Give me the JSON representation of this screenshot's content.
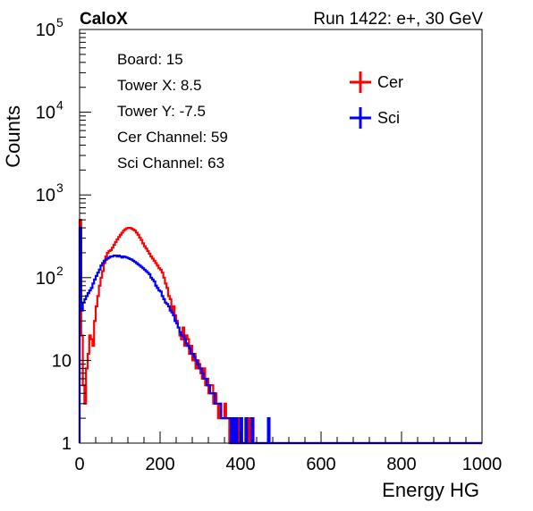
{
  "chart_data": {
    "type": "line",
    "header_left": "CaloX",
    "header_right": "Run 1422: e+, 30 GeV",
    "xlabel": "Energy HG",
    "ylabel": "Counts",
    "xlim": [
      0,
      1000
    ],
    "ylim": [
      1,
      100000
    ],
    "log_y": true,
    "x_ticks": [
      0,
      200,
      400,
      600,
      800,
      1000
    ],
    "y_ticks": [
      {
        "value": 1,
        "base": "1",
        "exp": ""
      },
      {
        "value": 10,
        "base": "10",
        "exp": ""
      },
      {
        "value": 100,
        "base": "10",
        "exp": "2"
      },
      {
        "value": 1000,
        "base": "10",
        "exp": "3"
      },
      {
        "value": 10000,
        "base": "10",
        "exp": "4"
      },
      {
        "value": 100000,
        "base": "10",
        "exp": "5"
      }
    ],
    "info_lines": [
      "Board: 15",
      "Tower X: 8.5",
      "Tower Y: -7.5",
      "Cer Channel: 59",
      "Sci Channel: 63"
    ],
    "legend_position": "top-right",
    "series": [
      {
        "name": "Cer",
        "color": "#ff0000",
        "x": [
          0,
          4,
          8,
          12,
          16,
          20,
          24,
          28,
          32,
          36,
          40,
          44,
          48,
          52,
          56,
          60,
          64,
          68,
          72,
          76,
          80,
          84,
          88,
          92,
          96,
          100,
          104,
          108,
          112,
          116,
          120,
          124,
          128,
          132,
          136,
          140,
          144,
          148,
          152,
          156,
          160,
          164,
          168,
          172,
          176,
          180,
          184,
          188,
          192,
          196,
          200,
          204,
          208,
          212,
          216,
          220,
          224,
          228,
          232,
          236,
          240,
          244,
          248,
          252,
          256,
          260,
          264,
          268,
          272,
          276,
          280,
          284,
          288,
          292,
          296,
          300,
          304,
          308,
          312,
          316,
          320,
          324,
          328,
          332,
          336,
          340,
          344,
          348,
          352,
          356,
          360,
          364,
          368,
          372,
          376,
          380,
          384,
          388,
          392,
          396,
          400,
          404,
          408,
          412,
          416,
          420,
          424,
          428,
          432,
          436,
          440,
          444,
          448,
          452,
          456,
          460,
          464,
          468,
          472,
          476,
          480,
          484,
          488,
          492,
          496,
          500,
          504,
          508,
          512,
          516,
          520,
          524,
          528,
          532,
          536,
          540,
          544,
          548,
          552,
          556,
          560,
          564,
          568,
          572,
          576,
          580,
          584,
          588,
          592,
          596,
          600
        ],
        "y": [
          500,
          20,
          5,
          3,
          8,
          12,
          20,
          18,
          15,
          30,
          45,
          60,
          80,
          100,
          120,
          150,
          180,
          200,
          210,
          215,
          230,
          250,
          270,
          290,
          310,
          330,
          350,
          370,
          385,
          395,
          400,
          398,
          392,
          380,
          370,
          350,
          330,
          305,
          285,
          260,
          240,
          225,
          210,
          195,
          180,
          170,
          160,
          150,
          140,
          130,
          125,
          115,
          100,
          85,
          75,
          60,
          55,
          40,
          45,
          35,
          30,
          25,
          20,
          18,
          25,
          15,
          20,
          18,
          12,
          15,
          10,
          12,
          8,
          10,
          9,
          7,
          6,
          8,
          5,
          6,
          4,
          5,
          5,
          3,
          4,
          3,
          2,
          3,
          2,
          2,
          3,
          2,
          2,
          1,
          2,
          1,
          2,
          1,
          1,
          2,
          1,
          1,
          1,
          1,
          1,
          2,
          1,
          1,
          1,
          1,
          1,
          1,
          1,
          1,
          1,
          1,
          1,
          1,
          1,
          1,
          1,
          1,
          1,
          1,
          1,
          1,
          1,
          1,
          1,
          1,
          1,
          1,
          1,
          1,
          1,
          1,
          1,
          1,
          1,
          1,
          1,
          1,
          1,
          1,
          1,
          1,
          1,
          1,
          1,
          1,
          1
        ]
      },
      {
        "name": "Sci",
        "color": "#0000ff",
        "x": [
          0,
          4,
          8,
          12,
          16,
          20,
          24,
          28,
          32,
          36,
          40,
          44,
          48,
          52,
          56,
          60,
          64,
          68,
          72,
          76,
          80,
          84,
          88,
          92,
          96,
          100,
          104,
          108,
          112,
          116,
          120,
          124,
          128,
          132,
          136,
          140,
          144,
          148,
          152,
          156,
          160,
          164,
          168,
          172,
          176,
          180,
          184,
          188,
          192,
          196,
          200,
          204,
          208,
          212,
          216,
          220,
          224,
          228,
          232,
          236,
          240,
          244,
          248,
          252,
          256,
          260,
          264,
          268,
          272,
          276,
          280,
          284,
          288,
          292,
          296,
          300,
          304,
          308,
          312,
          316,
          320,
          324,
          328,
          332,
          336,
          340,
          344,
          348,
          352,
          356,
          360,
          364,
          368,
          372,
          376,
          380,
          384,
          388,
          392,
          396,
          400,
          404,
          408,
          412,
          416,
          420,
          424,
          428,
          432,
          436,
          440,
          444,
          448,
          452,
          456,
          460,
          464,
          468,
          472,
          476,
          480,
          484,
          488,
          492,
          496,
          500,
          504,
          508,
          512,
          516,
          520,
          524,
          528,
          532,
          536,
          540,
          544,
          548,
          552,
          556,
          560,
          564,
          568,
          572,
          576,
          580,
          584,
          588,
          592,
          596,
          600,
          604,
          608,
          612,
          616,
          620,
          624,
          628,
          632,
          636,
          640,
          644,
          648,
          652,
          656,
          660,
          664,
          668,
          672,
          676,
          680,
          684,
          688,
          692,
          696,
          700,
          704,
          708,
          712,
          716,
          720,
          724,
          728
        ],
        "y": [
          400,
          40,
          50,
          55,
          60,
          65,
          70,
          75,
          85,
          95,
          105,
          115,
          125,
          140,
          150,
          160,
          165,
          170,
          175,
          180,
          180,
          185,
          185,
          180,
          185,
          180,
          175,
          180,
          178,
          175,
          172,
          168,
          165,
          160,
          155,
          150,
          145,
          140,
          135,
          130,
          125,
          120,
          115,
          110,
          100,
          95,
          90,
          80,
          75,
          70,
          68,
          60,
          55,
          50,
          48,
          45,
          40,
          38,
          35,
          30,
          28,
          25,
          22,
          20,
          20,
          18,
          16,
          15,
          14,
          12,
          12,
          11,
          10,
          9,
          8,
          8,
          7,
          6,
          6,
          5,
          5,
          4,
          4,
          4,
          3,
          3,
          3,
          3,
          2,
          2,
          2,
          2,
          2,
          2,
          1,
          2,
          1,
          2,
          1,
          1,
          2,
          1,
          1,
          2,
          1,
          1,
          1,
          2,
          1,
          1,
          1,
          1,
          1,
          1,
          1,
          1,
          1,
          2,
          1,
          1,
          1,
          1,
          1,
          1,
          1,
          1,
          1,
          1,
          1,
          1,
          1,
          1,
          1,
          1,
          1,
          1,
          1,
          1,
          1,
          1,
          1,
          1,
          1,
          1,
          1,
          1,
          1,
          1,
          1,
          1,
          1,
          1,
          1,
          1,
          1,
          1,
          1,
          1,
          1,
          1,
          1,
          1,
          1,
          1,
          1,
          1,
          1,
          1,
          1,
          1,
          1,
          1,
          1,
          1,
          1,
          1,
          1,
          1,
          1,
          1,
          1,
          1,
          1
        ]
      }
    ]
  }
}
